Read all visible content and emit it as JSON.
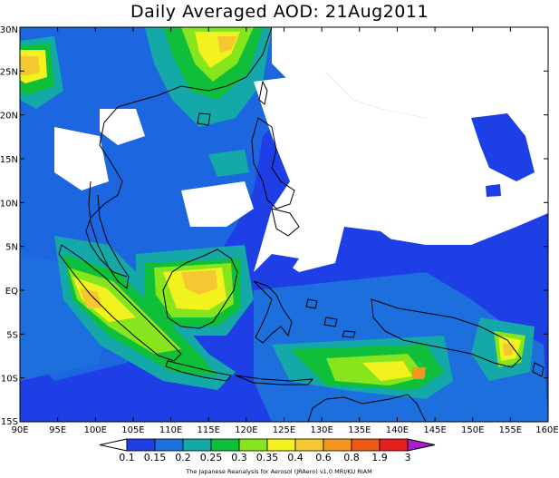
{
  "title": "Daily Averaged AOD: 21Aug2011",
  "map": {
    "lon_range": [
      90,
      160
    ],
    "lat_range": [
      -15,
      30
    ],
    "lon_ticks": [
      "90E",
      "95E",
      "100E",
      "105E",
      "110E",
      "115E",
      "120E",
      "125E",
      "130E",
      "135E",
      "140E",
      "145E",
      "150E",
      "155E",
      "160E"
    ],
    "lat_ticks": [
      "30N",
      "25N",
      "20N",
      "15N",
      "10N",
      "5N",
      "EQ",
      "5S",
      "10S",
      "15S"
    ],
    "background_color": "#1f3fe6"
  },
  "legend": {
    "values": [
      "0.1",
      "0.15",
      "0.2",
      "0.25",
      "0.3",
      "0.35",
      "0.4",
      "0.6",
      "0.8",
      "1.9",
      "3"
    ],
    "colors": [
      "#ffffff",
      "#1f3fe6",
      "#1c6fdd",
      "#14a8a8",
      "#0fbf3a",
      "#86e51c",
      "#f2f21e",
      "#f5c832",
      "#f2961e",
      "#ee5a14",
      "#e61e1e",
      "#a81ec8"
    ],
    "credit": "The Japanese Reanalysis for Aerosol (JRAero) v1.0 MRI/KU RIAM"
  }
}
